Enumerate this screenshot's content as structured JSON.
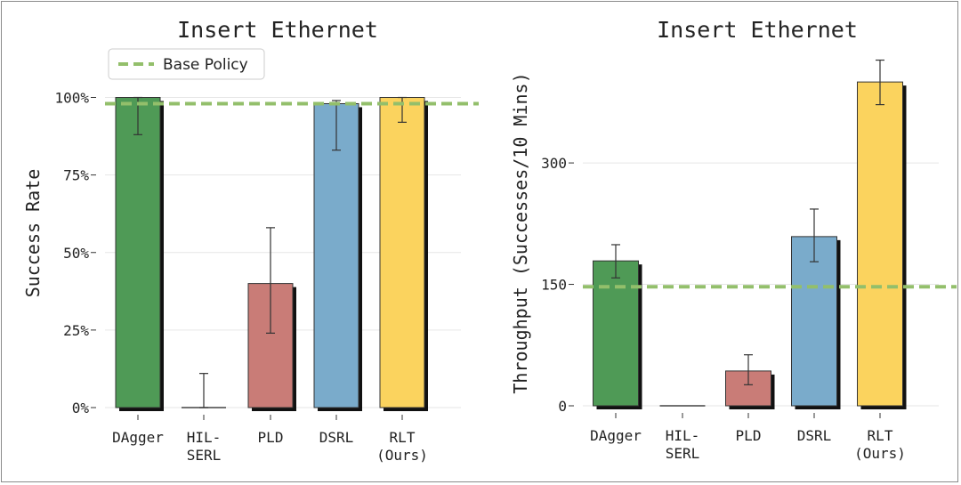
{
  "chart_data": [
    {
      "type": "bar",
      "title": "Insert Ethernet",
      "xlabel": "",
      "ylabel": "Success Rate",
      "categories": [
        [
          "DAgger"
        ],
        [
          "HIL-",
          "SERL"
        ],
        [
          "PLD"
        ],
        [
          "DSRL"
        ],
        [
          "RLT",
          "(Ours)"
        ]
      ],
      "values": [
        100,
        0,
        40,
        98,
        100
      ],
      "error_low": [
        88,
        0,
        24,
        83,
        92
      ],
      "error_high": [
        100,
        11,
        58,
        99,
        100
      ],
      "colors": [
        "#4f9a56",
        "#4f9a56",
        "#c97c77",
        "#7aabcb",
        "#fbd35e"
      ],
      "ylim": [
        0,
        110
      ],
      "yticks": [
        0,
        25,
        50,
        75,
        100
      ],
      "ytick_labels": [
        "0%",
        "25%",
        "50%",
        "75%",
        "100%"
      ],
      "baseline": {
        "name": "Base Policy",
        "value": 98,
        "color": "#93bf6b"
      },
      "legend": "top-left",
      "grid": true
    },
    {
      "type": "bar",
      "title": "Insert Ethernet",
      "xlabel": "",
      "ylabel": "Throughput (Successes/10 Mins)",
      "categories": [
        [
          "DAgger"
        ],
        [
          "HIL-",
          "SERL"
        ],
        [
          "PLD"
        ],
        [
          "DSRL"
        ],
        [
          "RLT",
          "(Ours)"
        ]
      ],
      "values": [
        179,
        0,
        43,
        209,
        400
      ],
      "error_low": [
        158,
        0,
        26,
        178,
        372
      ],
      "error_high": [
        199,
        0,
        63,
        243,
        427
      ],
      "colors": [
        "#4f9a56",
        "#4f9a56",
        "#c97c77",
        "#7aabcb",
        "#fbd35e"
      ],
      "ylim": [
        0,
        430
      ],
      "yticks": [
        0,
        150,
        300
      ],
      "ytick_labels": [
        "0",
        "150",
        "300"
      ],
      "baseline": {
        "name": "Base Policy",
        "value": 147,
        "color": "#93bf6b"
      },
      "legend": "none",
      "grid": true
    }
  ]
}
